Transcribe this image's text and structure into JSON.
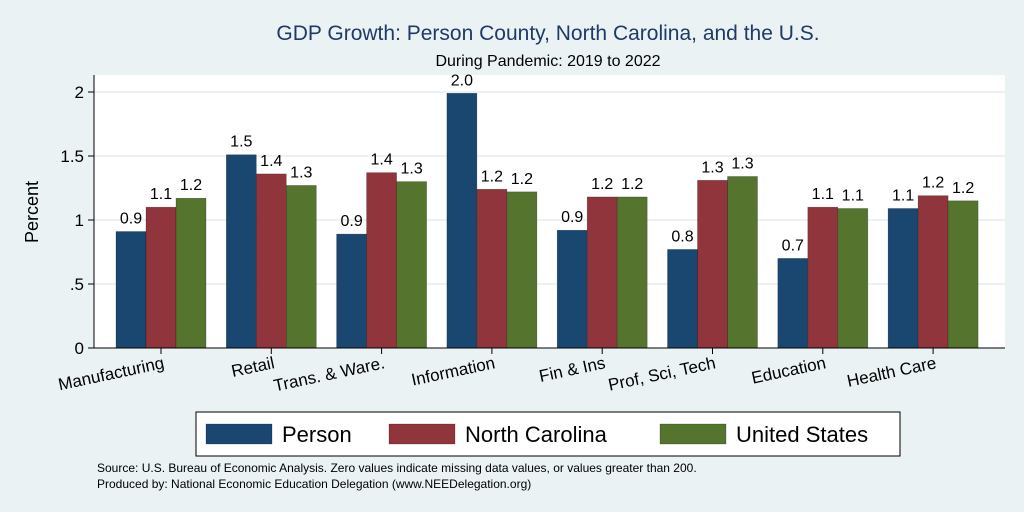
{
  "chart_data": {
    "type": "bar",
    "title": "GDP Growth: Person County, North Carolina, and the U.S.",
    "subtitle": "During Pandemic: 2019 to 2022",
    "ylabel": "Percent",
    "xlabel": "",
    "ylim": [
      0,
      2.15
    ],
    "yticks": [
      {
        "value": 0,
        "label": "0"
      },
      {
        "value": 0.5,
        "label": ".5"
      },
      {
        "value": 1,
        "label": "1"
      },
      {
        "value": 1.5,
        "label": "1.5"
      },
      {
        "value": 2,
        "label": "2"
      }
    ],
    "grid": true,
    "legend_position": "bottom",
    "categories": [
      "Manufacturing",
      "Retail",
      "Trans. & Ware.",
      "Information",
      "Fin & Ins",
      "Prof, Sci, Tech",
      "Education",
      "Health Care"
    ],
    "series": [
      {
        "name": "Person",
        "color": "#1a476f",
        "values": [
          0.91,
          1.51,
          0.89,
          1.99,
          0.92,
          0.77,
          0.7,
          1.09
        ],
        "labels": [
          "0.9",
          "1.5",
          "0.9",
          "2.0",
          "0.9",
          "0.8",
          "0.7",
          "1.1"
        ]
      },
      {
        "name": "North Carolina",
        "color": "#90353b",
        "values": [
          1.1,
          1.36,
          1.37,
          1.24,
          1.18,
          1.31,
          1.1,
          1.19
        ],
        "labels": [
          "1.1",
          "1.4",
          "1.4",
          "1.2",
          "1.2",
          "1.3",
          "1.1",
          "1.2"
        ]
      },
      {
        "name": "United States",
        "color": "#55752f",
        "values": [
          1.17,
          1.27,
          1.3,
          1.22,
          1.18,
          1.34,
          1.09,
          1.15
        ],
        "labels": [
          "1.2",
          "1.3",
          "1.3",
          "1.2",
          "1.2",
          "1.3",
          "1.1",
          "1.2"
        ]
      }
    ],
    "notes": [
      "Source: U.S. Bureau of Economic Analysis. Zero values indicate missing data values, or values greater than 200.",
      "Produced by: National Economic Education Delegation (www.NEEDelegation.org)"
    ]
  }
}
